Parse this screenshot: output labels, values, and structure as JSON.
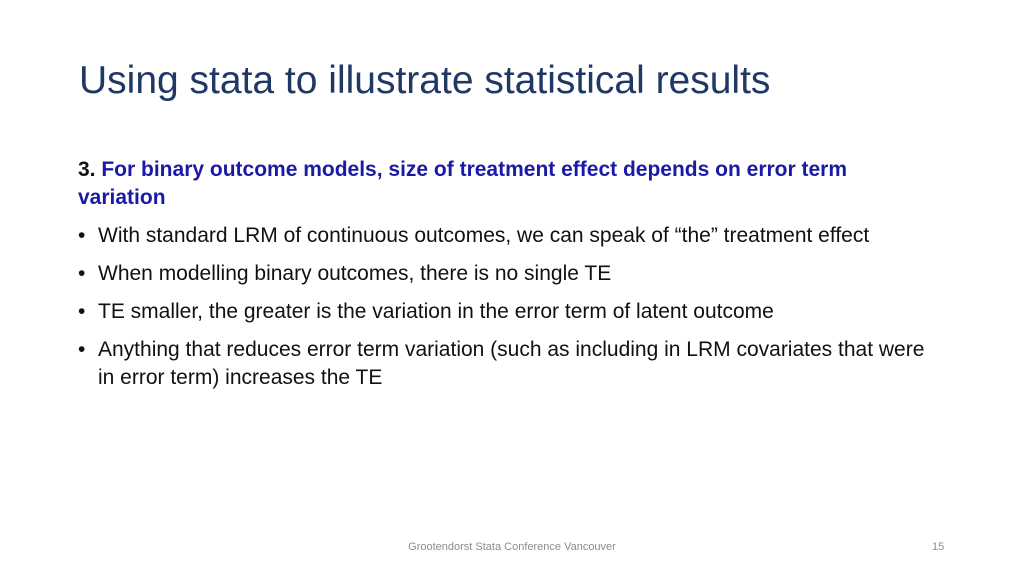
{
  "slide": {
    "title": "Using stata to illustrate statistical results",
    "heading_number": "3.",
    "heading_text": "For binary outcome models, size of treatment effect depends on error term variation",
    "bullets": [
      "With standard LRM of continuous outcomes, we can speak of “the” treatment effect",
      "When modelling binary outcomes, there is no single TE",
      "TE smaller, the greater is the variation in the error term of latent outcome",
      "Anything that reduces error term variation (such as including in LRM covariates that were in error term) increases the TE"
    ],
    "bullet_glyph": "•",
    "footer": "Grootendorst Stata Conference Vancouver",
    "page_number": "15"
  },
  "colors": {
    "title": "#1F3864",
    "heading_accent": "#1A1AA6",
    "body_text": "#111111",
    "footer_text": "#8c8c8c"
  }
}
